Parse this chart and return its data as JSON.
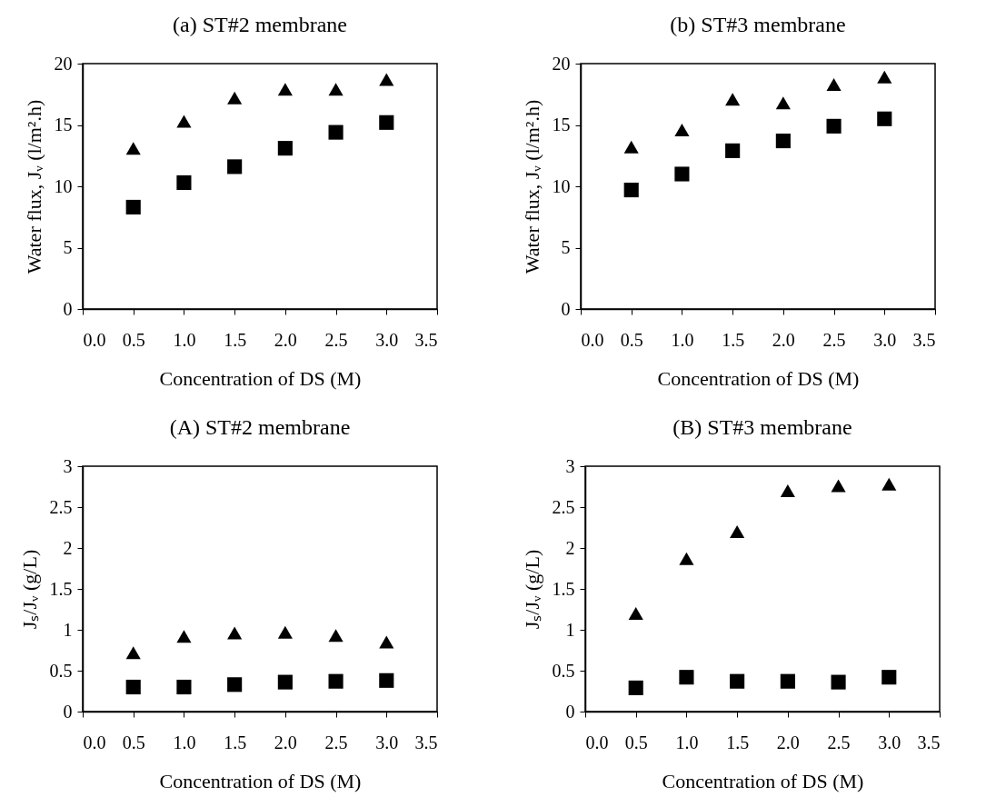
{
  "chart_data": [
    {
      "type": "scatter",
      "title": "(a) ST#2 membrane",
      "xlabel": "Concentration of DS (M)",
      "ylabel": "Water flux, Jᵥ (l/m².h)",
      "x": [
        0.5,
        1.0,
        1.5,
        2.0,
        2.5,
        3.0
      ],
      "xlim": [
        0,
        3.5
      ],
      "xticks": [
        {
          "value": 0,
          "label": "0.0"
        },
        {
          "value": 0.5,
          "label": "0.5"
        },
        {
          "value": 1,
          "label": "1.0"
        },
        {
          "value": 1.5,
          "label": "1.5"
        },
        {
          "value": 2,
          "label": "2.0"
        },
        {
          "value": 2.5,
          "label": "2.5"
        },
        {
          "value": 3,
          "label": "3.0"
        },
        {
          "value": 3.5,
          "label": "3.5"
        }
      ],
      "ylim": [
        0,
        20
      ],
      "yticks": [
        0,
        5,
        10,
        15,
        20
      ],
      "series": [
        {
          "color": "#000000",
          "marker": "triangle",
          "values": [
            13.1,
            15.3,
            17.2,
            17.9,
            17.9,
            18.7
          ]
        },
        {
          "color": "#000000",
          "marker": "square",
          "values": [
            8.3,
            10.3,
            11.6,
            13.1,
            14.4,
            15.2
          ]
        }
      ]
    },
    {
      "type": "scatter",
      "title": "(b) ST#3 membrane",
      "xlabel": "Concentration of DS (M)",
      "ylabel": "Water flux, Jᵥ (l/m².h)",
      "x": [
        0.5,
        1.0,
        1.5,
        2.0,
        2.5,
        3.0
      ],
      "xlim": [
        0,
        3.5
      ],
      "xticks": [
        {
          "value": 0,
          "label": "0.0"
        },
        {
          "value": 0.5,
          "label": "0.5"
        },
        {
          "value": 1,
          "label": "1.0"
        },
        {
          "value": 1.5,
          "label": "1.5"
        },
        {
          "value": 2,
          "label": "2.0"
        },
        {
          "value": 2.5,
          "label": "2.5"
        },
        {
          "value": 3,
          "label": "3.0"
        },
        {
          "value": 3.5,
          "label": "3.5"
        }
      ],
      "ylim": [
        0,
        20
      ],
      "yticks": [
        0,
        5,
        10,
        15,
        20
      ],
      "series": [
        {
          "color": "#000000",
          "marker": "triangle",
          "values": [
            13.2,
            14.6,
            17.1,
            16.8,
            18.3,
            18.9
          ]
        },
        {
          "color": "#000000",
          "marker": "square",
          "values": [
            9.7,
            11.0,
            12.9,
            13.7,
            14.9,
            15.5
          ]
        }
      ]
    },
    {
      "type": "scatter",
      "title": "(A) ST#2 membrane",
      "xlabel": "Concentration of DS (M)",
      "ylabel": "Jₛ/Jᵥ (g/L)",
      "x": [
        0.5,
        1.0,
        1.5,
        2.0,
        2.5,
        3.0
      ],
      "xlim": [
        0,
        3.5
      ],
      "xticks": [
        {
          "value": 0,
          "label": "0.0"
        },
        {
          "value": 0.5,
          "label": "0.5"
        },
        {
          "value": 1,
          "label": "1.0"
        },
        {
          "value": 1.5,
          "label": "1.5"
        },
        {
          "value": 2,
          "label": "2.0"
        },
        {
          "value": 2.5,
          "label": "2.5"
        },
        {
          "value": 3,
          "label": "3.0"
        },
        {
          "value": 3.5,
          "label": "3.5"
        }
      ],
      "ylim": [
        0,
        3
      ],
      "yticks": [
        0,
        0.5,
        1,
        1.5,
        2,
        2.5,
        3
      ],
      "series": [
        {
          "color": "#000000",
          "marker": "triangle",
          "values": [
            0.72,
            0.92,
            0.96,
            0.97,
            0.93,
            0.85
          ]
        },
        {
          "color": "#000000",
          "marker": "square",
          "values": [
            0.3,
            0.3,
            0.33,
            0.36,
            0.37,
            0.38
          ]
        }
      ]
    },
    {
      "type": "scatter",
      "title": "(B) ST#3 membrane",
      "xlabel": "Concentration of DS (M)",
      "ylabel": "Jₛ/Jᵥ (g/L)",
      "x": [
        0.5,
        1.0,
        1.5,
        2.0,
        2.5,
        3.0
      ],
      "xlim": [
        0,
        3.5
      ],
      "xticks": [
        {
          "value": 0,
          "label": "0.0"
        },
        {
          "value": 0.5,
          "label": "0.5"
        },
        {
          "value": 1,
          "label": "1.0"
        },
        {
          "value": 1.5,
          "label": "1.5"
        },
        {
          "value": 2,
          "label": "2.0"
        },
        {
          "value": 2.5,
          "label": "2.5"
        },
        {
          "value": 3,
          "label": "3.0"
        },
        {
          "value": 3.5,
          "label": "3.5"
        }
      ],
      "ylim": [
        0,
        3
      ],
      "yticks": [
        0,
        0.5,
        1,
        1.5,
        2,
        2.5,
        3
      ],
      "series": [
        {
          "color": "#000000",
          "marker": "triangle",
          "values": [
            1.2,
            1.87,
            2.2,
            2.7,
            2.76,
            2.78
          ]
        },
        {
          "color": "#000000",
          "marker": "square",
          "values": [
            0.29,
            0.42,
            0.37,
            0.37,
            0.36,
            0.42
          ]
        }
      ]
    }
  ]
}
